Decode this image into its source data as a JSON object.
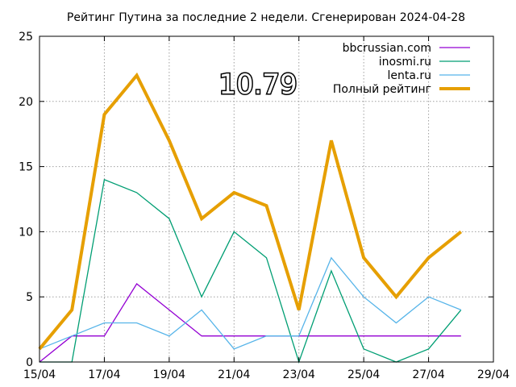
{
  "chart_data": {
    "type": "line",
    "title": "Рейтинг Путина за последние 2 недели. Сгенерирован 2024-04-28",
    "x_tick_labels": [
      "15/04",
      "17/04",
      "19/04",
      "21/04",
      "23/04",
      "25/04",
      "27/04",
      "29/04"
    ],
    "x_tick_values": [
      0,
      2,
      4,
      6,
      8,
      10,
      12,
      14
    ],
    "y_tick_labels": [
      "0",
      "5",
      "10",
      "15",
      "20",
      "25"
    ],
    "y_tick_values": [
      0,
      5,
      10,
      15,
      20,
      25
    ],
    "xlim": [
      0,
      14
    ],
    "ylim": [
      0,
      25
    ],
    "grid": true,
    "legend_position": "top-right",
    "annotation": "10.79",
    "x": [
      0,
      1,
      2,
      3,
      4,
      5,
      6,
      7,
      8,
      9,
      10,
      11,
      12,
      13
    ],
    "series": [
      {
        "name": "bbcrussian.com",
        "color": "#9400d3",
        "width": 1.3,
        "values": [
          0,
          2,
          2,
          6,
          4,
          2,
          2,
          2,
          2,
          2,
          2,
          2,
          2,
          2
        ]
      },
      {
        "name": "inosmi.ru",
        "color": "#009e73",
        "width": 1.3,
        "values": [
          0,
          0,
          14,
          13,
          11,
          5,
          10,
          8,
          0,
          7,
          1,
          0,
          1,
          4
        ]
      },
      {
        "name": "lenta.ru",
        "color": "#56b4e9",
        "width": 1.3,
        "values": [
          1,
          2,
          3,
          3,
          2,
          4,
          1,
          2,
          2,
          8,
          5,
          3,
          5,
          4
        ]
      },
      {
        "name": "Полный рейтинг",
        "color": "#e69f00",
        "width": 4,
        "values": [
          1,
          4,
          19,
          22,
          17,
          11,
          13,
          12,
          4,
          17,
          8,
          5,
          8,
          10
        ]
      }
    ]
  }
}
